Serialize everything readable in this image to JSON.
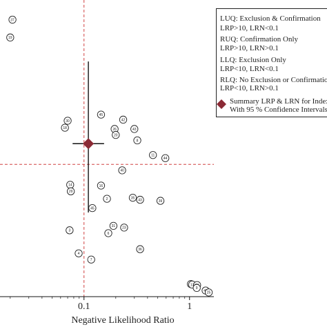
{
  "chart_data": {
    "type": "scatter",
    "xlabel": "Negative Likelihood Ratio",
    "x_scale": "log",
    "xlim": [
      0.016,
      1.7
    ],
    "ylim": [
      0.75,
      250
    ],
    "x_ticks": [
      {
        "value": 0.1,
        "label": "0.1"
      },
      {
        "value": 1,
        "label": "1"
      }
    ],
    "reference_lines": {
      "x": 0.1,
      "y": 10,
      "color": "#d04040",
      "style": "dashed"
    },
    "summary": {
      "x": 0.11,
      "y": 15,
      "x_ci": [
        0.078,
        0.155
      ],
      "y_ci": [
        3.9,
        75
      ],
      "color": "#8b2a35"
    },
    "points": [
      {
        "label": "37",
        "x": 0.021,
        "y": 170
      },
      {
        "label": "19",
        "x": 0.02,
        "y": 120
      },
      {
        "label": "45",
        "x": 0.145,
        "y": 26.5
      },
      {
        "label": "30",
        "x": 0.07,
        "y": 23.5
      },
      {
        "label": "18",
        "x": 0.066,
        "y": 20.5
      },
      {
        "label": "42",
        "x": 0.235,
        "y": 24
      },
      {
        "label": "26",
        "x": 0.195,
        "y": 20
      },
      {
        "label": "43",
        "x": 0.3,
        "y": 20
      },
      {
        "label": "20",
        "x": 0.2,
        "y": 17.8
      },
      {
        "label": "8",
        "x": 0.32,
        "y": 16
      },
      {
        "label": "11",
        "x": 0.45,
        "y": 12
      },
      {
        "label": "44",
        "x": 0.59,
        "y": 11.3
      },
      {
        "label": "40",
        "x": 0.23,
        "y": 8.9
      },
      {
        "label": "14",
        "x": 0.074,
        "y": 6.7
      },
      {
        "label": "29",
        "x": 0.075,
        "y": 5.9
      },
      {
        "label": "16",
        "x": 0.145,
        "y": 6.6
      },
      {
        "label": "2",
        "x": 0.165,
        "y": 5.1
      },
      {
        "label": "35",
        "x": 0.29,
        "y": 5.2
      },
      {
        "label": "43b",
        "x": 0.34,
        "y": 5.0
      },
      {
        "label": "39",
        "x": 0.53,
        "y": 4.9
      },
      {
        "label": "45b",
        "x": 0.12,
        "y": 4.25
      },
      {
        "label": "31",
        "x": 0.19,
        "y": 3.0
      },
      {
        "label": "23",
        "x": 0.24,
        "y": 2.9
      },
      {
        "label": "6",
        "x": 0.17,
        "y": 2.6
      },
      {
        "label": "3",
        "x": 0.073,
        "y": 2.75
      },
      {
        "label": "36",
        "x": 0.34,
        "y": 1.9
      },
      {
        "label": "4",
        "x": 0.089,
        "y": 1.75
      },
      {
        "label": "7",
        "x": 0.117,
        "y": 1.55
      },
      {
        "label": "15",
        "x": 1.03,
        "y": 0.96
      },
      {
        "label": "13",
        "x": 1.06,
        "y": 0.95
      },
      {
        "label": "21",
        "x": 1.18,
        "y": 0.94
      },
      {
        "label": "9",
        "x": 1.17,
        "y": 0.89
      },
      {
        "label": "47",
        "x": 1.42,
        "y": 0.845
      },
      {
        "label": "25",
        "x": 1.52,
        "y": 0.815
      }
    ],
    "legend": {
      "quadrants": [
        {
          "line1": "LUQ: Exclusion & Confirmation",
          "line2": "LRP>10, LRN<0.1"
        },
        {
          "line1": "RUQ: Confirmation Only",
          "line2": "LRP>10, LRN>0.1"
        },
        {
          "line1": "LLQ: Exclusion Only",
          "line2": "LRP<10, LRN<0.1"
        },
        {
          "line1": "RLQ: No Exclusion or Confirmation",
          "line2": "LRP<10, LRN>0.1"
        }
      ],
      "summary_line1": "Summary LRP & LRN for Index Test",
      "summary_line2": "With 95 % Confidence Intervals"
    }
  }
}
